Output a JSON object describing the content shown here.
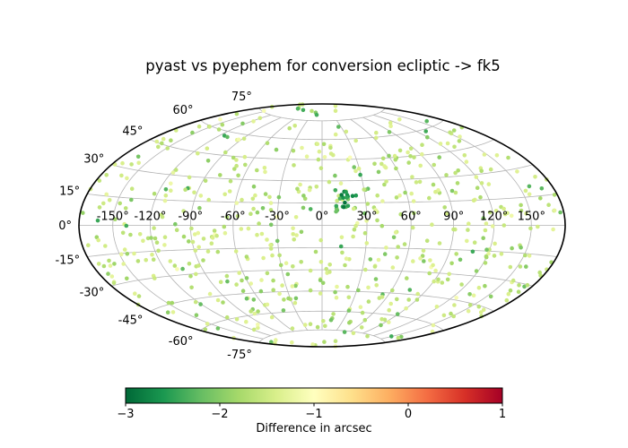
{
  "figure": {
    "background": "#ffffff"
  },
  "chart_data": {
    "type": "scatter",
    "projection": "hammer",
    "title": "pyast vs pyephem for conversion ecliptic -> fk5",
    "grid": true,
    "graticule": {
      "lon_step_deg": 30,
      "lat_step_deg": 15,
      "lon_values": [
        -150,
        -120,
        -90,
        -60,
        -30,
        0,
        30,
        60,
        90,
        120,
        150
      ],
      "lon_labels": [
        "-150°",
        "-120°",
        "-90°",
        "-60°",
        "-30°",
        "0°",
        "30°",
        "60°",
        "90°",
        "120°",
        "150°"
      ],
      "lat_values": [
        75,
        60,
        45,
        30,
        15,
        0,
        -15,
        -30,
        -45,
        -60,
        -75
      ],
      "lat_labels": [
        "75°",
        "60°",
        "45°",
        "30°",
        "15°",
        "0°",
        "-15°",
        "-30°",
        "-45°",
        "-60°",
        "-75°"
      ],
      "meridian_lat_extent_deg": 75,
      "grid_color": "#b3b3b3",
      "outline_color": "#000000"
    },
    "points": {
      "count": 620,
      "seed": 7,
      "distribution": "uniform on sphere",
      "marker_radius_px": 2.3,
      "value_unit": "arcsec",
      "value_mix": [
        {
          "fraction": 0.75,
          "range": [
            -1.75,
            -1.25
          ]
        },
        {
          "fraction": 0.17,
          "range": [
            -2.1,
            -1.75
          ]
        },
        {
          "fraction": 0.05,
          "range": [
            -2.45,
            -2.1
          ]
        },
        {
          "fraction": 0.03,
          "range": [
            -1.25,
            -0.95
          ]
        }
      ],
      "cluster": {
        "lon_deg": 17,
        "lat_deg": 18,
        "spread_deg": 8,
        "count": 14,
        "range": [
          -2.95,
          -2.45
        ],
        "halo_count": 8,
        "halo_spread_deg": 14,
        "halo_range": [
          -2.4,
          -2.0
        ]
      }
    },
    "colorbar": {
      "label": "Difference in arcsec",
      "vmin": -3,
      "vmax": 1,
      "tick_values": [
        -3,
        -2,
        -1,
        0,
        1
      ],
      "tick_labels": [
        "−3",
        "−2",
        "−1",
        "0",
        "1"
      ],
      "cmap": "RdYlGn_r",
      "cmap_stops": [
        "#006837",
        "#1a9850",
        "#66bd63",
        "#a6d96a",
        "#d9ef8b",
        "#ffffbf",
        "#fee08b",
        "#fdae61",
        "#f46d43",
        "#d73027",
        "#a50026"
      ]
    }
  }
}
